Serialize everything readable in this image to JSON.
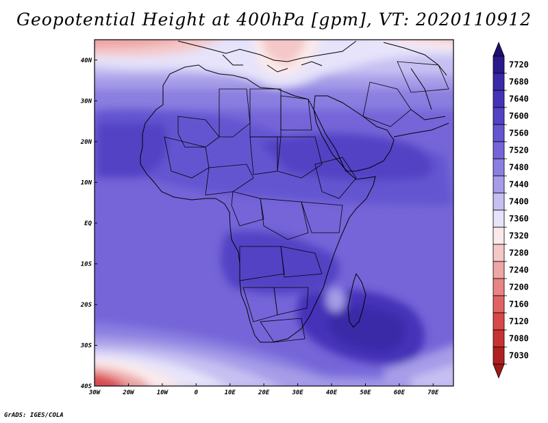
{
  "title": "Geopotential Height at 400hPa [gpm], VT: 2020110912",
  "credit": "GrADS: IGES/COLA",
  "map": {
    "lon_range": [
      -30,
      76
    ],
    "lat_range": [
      -40,
      45
    ],
    "lon_ticks": [
      {
        "value": -30,
        "label": "30W"
      },
      {
        "value": -20,
        "label": "20W"
      },
      {
        "value": -10,
        "label": "10W"
      },
      {
        "value": 0,
        "label": "0"
      },
      {
        "value": 10,
        "label": "10E"
      },
      {
        "value": 20,
        "label": "20E"
      },
      {
        "value": 30,
        "label": "30E"
      },
      {
        "value": 40,
        "label": "40E"
      },
      {
        "value": 50,
        "label": "50E"
      },
      {
        "value": 60,
        "label": "60E"
      },
      {
        "value": 70,
        "label": "70E"
      }
    ],
    "lat_ticks": [
      {
        "value": -40,
        "label": "40S"
      },
      {
        "value": -30,
        "label": "30S"
      },
      {
        "value": -20,
        "label": "20S"
      },
      {
        "value": -10,
        "label": "10S"
      },
      {
        "value": 0,
        "label": "EQ"
      },
      {
        "value": 10,
        "label": "10N"
      },
      {
        "value": 20,
        "label": "20N"
      },
      {
        "value": 30,
        "label": "30N"
      },
      {
        "value": 40,
        "label": "40N"
      }
    ]
  },
  "colorbar": {
    "levels": [
      {
        "label": "7720",
        "color": "#2a1a8c"
      },
      {
        "label": "7680",
        "color": "#3a2aa8"
      },
      {
        "label": "7640",
        "color": "#4433b8"
      },
      {
        "label": "7600",
        "color": "#5242c4"
      },
      {
        "label": "7560",
        "color": "#6455d0"
      },
      {
        "label": "7520",
        "color": "#7565d8"
      },
      {
        "label": "7480",
        "color": "#8a7ee0"
      },
      {
        "label": "7440",
        "color": "#a69ce8"
      },
      {
        "label": "7400",
        "color": "#c6c0f2"
      },
      {
        "label": "7360",
        "color": "#e6e3fa"
      },
      {
        "label": "7320",
        "color": "#fbeaea"
      },
      {
        "label": "7280",
        "color": "#f5c8c8"
      },
      {
        "label": "7240",
        "color": "#eea6a6"
      },
      {
        "label": "7200",
        "color": "#e88484"
      },
      {
        "label": "7160",
        "color": "#e06464"
      },
      {
        "label": "7120",
        "color": "#d84848"
      },
      {
        "label": "7080",
        "color": "#c83232"
      },
      {
        "label": "7030",
        "color": "#b02020"
      }
    ],
    "top_arrow_color": "#1f1070",
    "bottom_arrow_color": "#a01818"
  }
}
